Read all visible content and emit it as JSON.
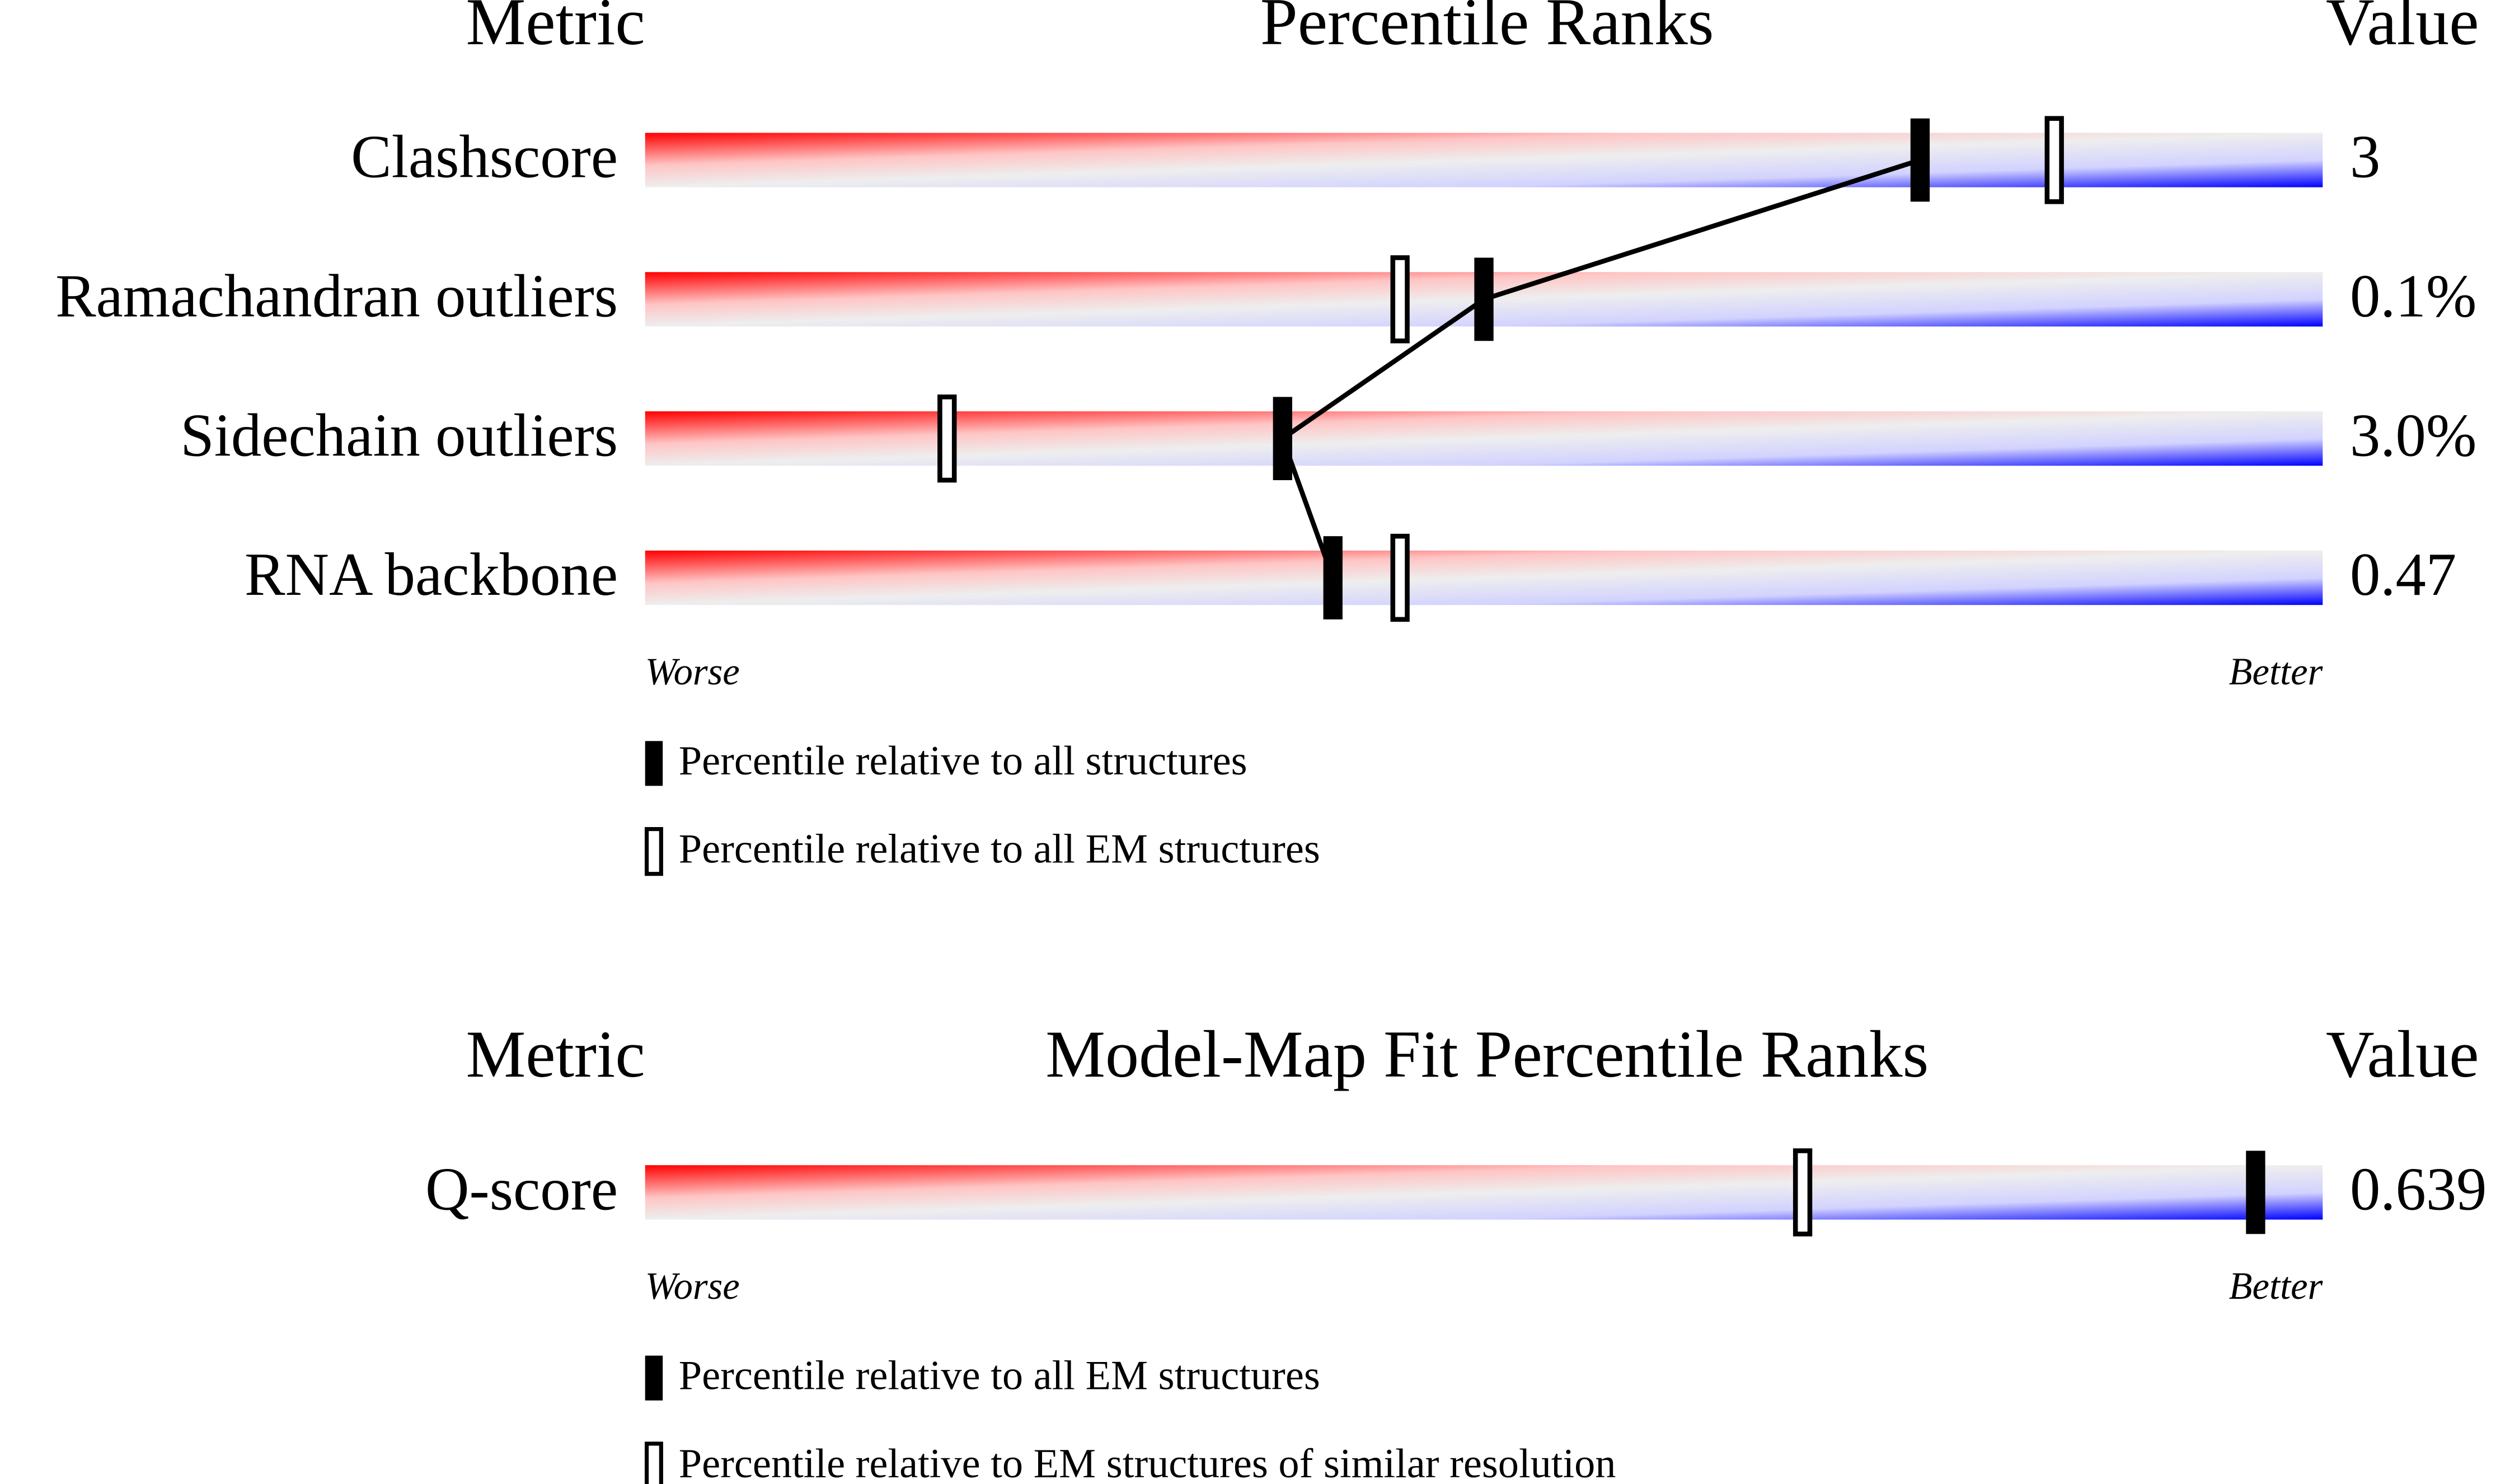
{
  "chart_data": [
    {
      "type": "percentile",
      "metric_header": "Metric",
      "title": "Percentile Ranks",
      "value_header": "Value",
      "categories": [
        "Clashscore",
        "Ramachandran outliers",
        "Sidechain outliers",
        "RNA backbone"
      ],
      "metric_values": [
        "3",
        "0.1%",
        "3.0%",
        "0.47"
      ],
      "xlim": [
        0,
        100
      ],
      "worse_label": "Worse",
      "better_label": "Better",
      "series": [
        {
          "name": "Percentile relative to all structures",
          "color": "#000000",
          "hollow": false,
          "connect": true,
          "values": [
            76,
            50,
            38,
            41
          ]
        },
        {
          "name": "Percentile relative to all EM structures",
          "color": "#000000",
          "hollow": true,
          "connect": false,
          "values": [
            84,
            45,
            18,
            45
          ]
        }
      ]
    },
    {
      "type": "percentile",
      "metric_header": "Metric",
      "title": "Model-Map Fit Percentile Ranks",
      "value_header": "Value",
      "categories": [
        "Q-score"
      ],
      "metric_values": [
        "0.639"
      ],
      "xlim": [
        0,
        100
      ],
      "worse_label": "Worse",
      "better_label": "Better",
      "series": [
        {
          "name": "Percentile relative to all EM structures",
          "color": "#000000",
          "hollow": false,
          "connect": true,
          "values": [
            96
          ]
        },
        {
          "name": "Percentile relative to EM structures of similar resolution",
          "color": "#000000",
          "hollow": true,
          "connect": false,
          "values": [
            69
          ]
        }
      ]
    }
  ]
}
